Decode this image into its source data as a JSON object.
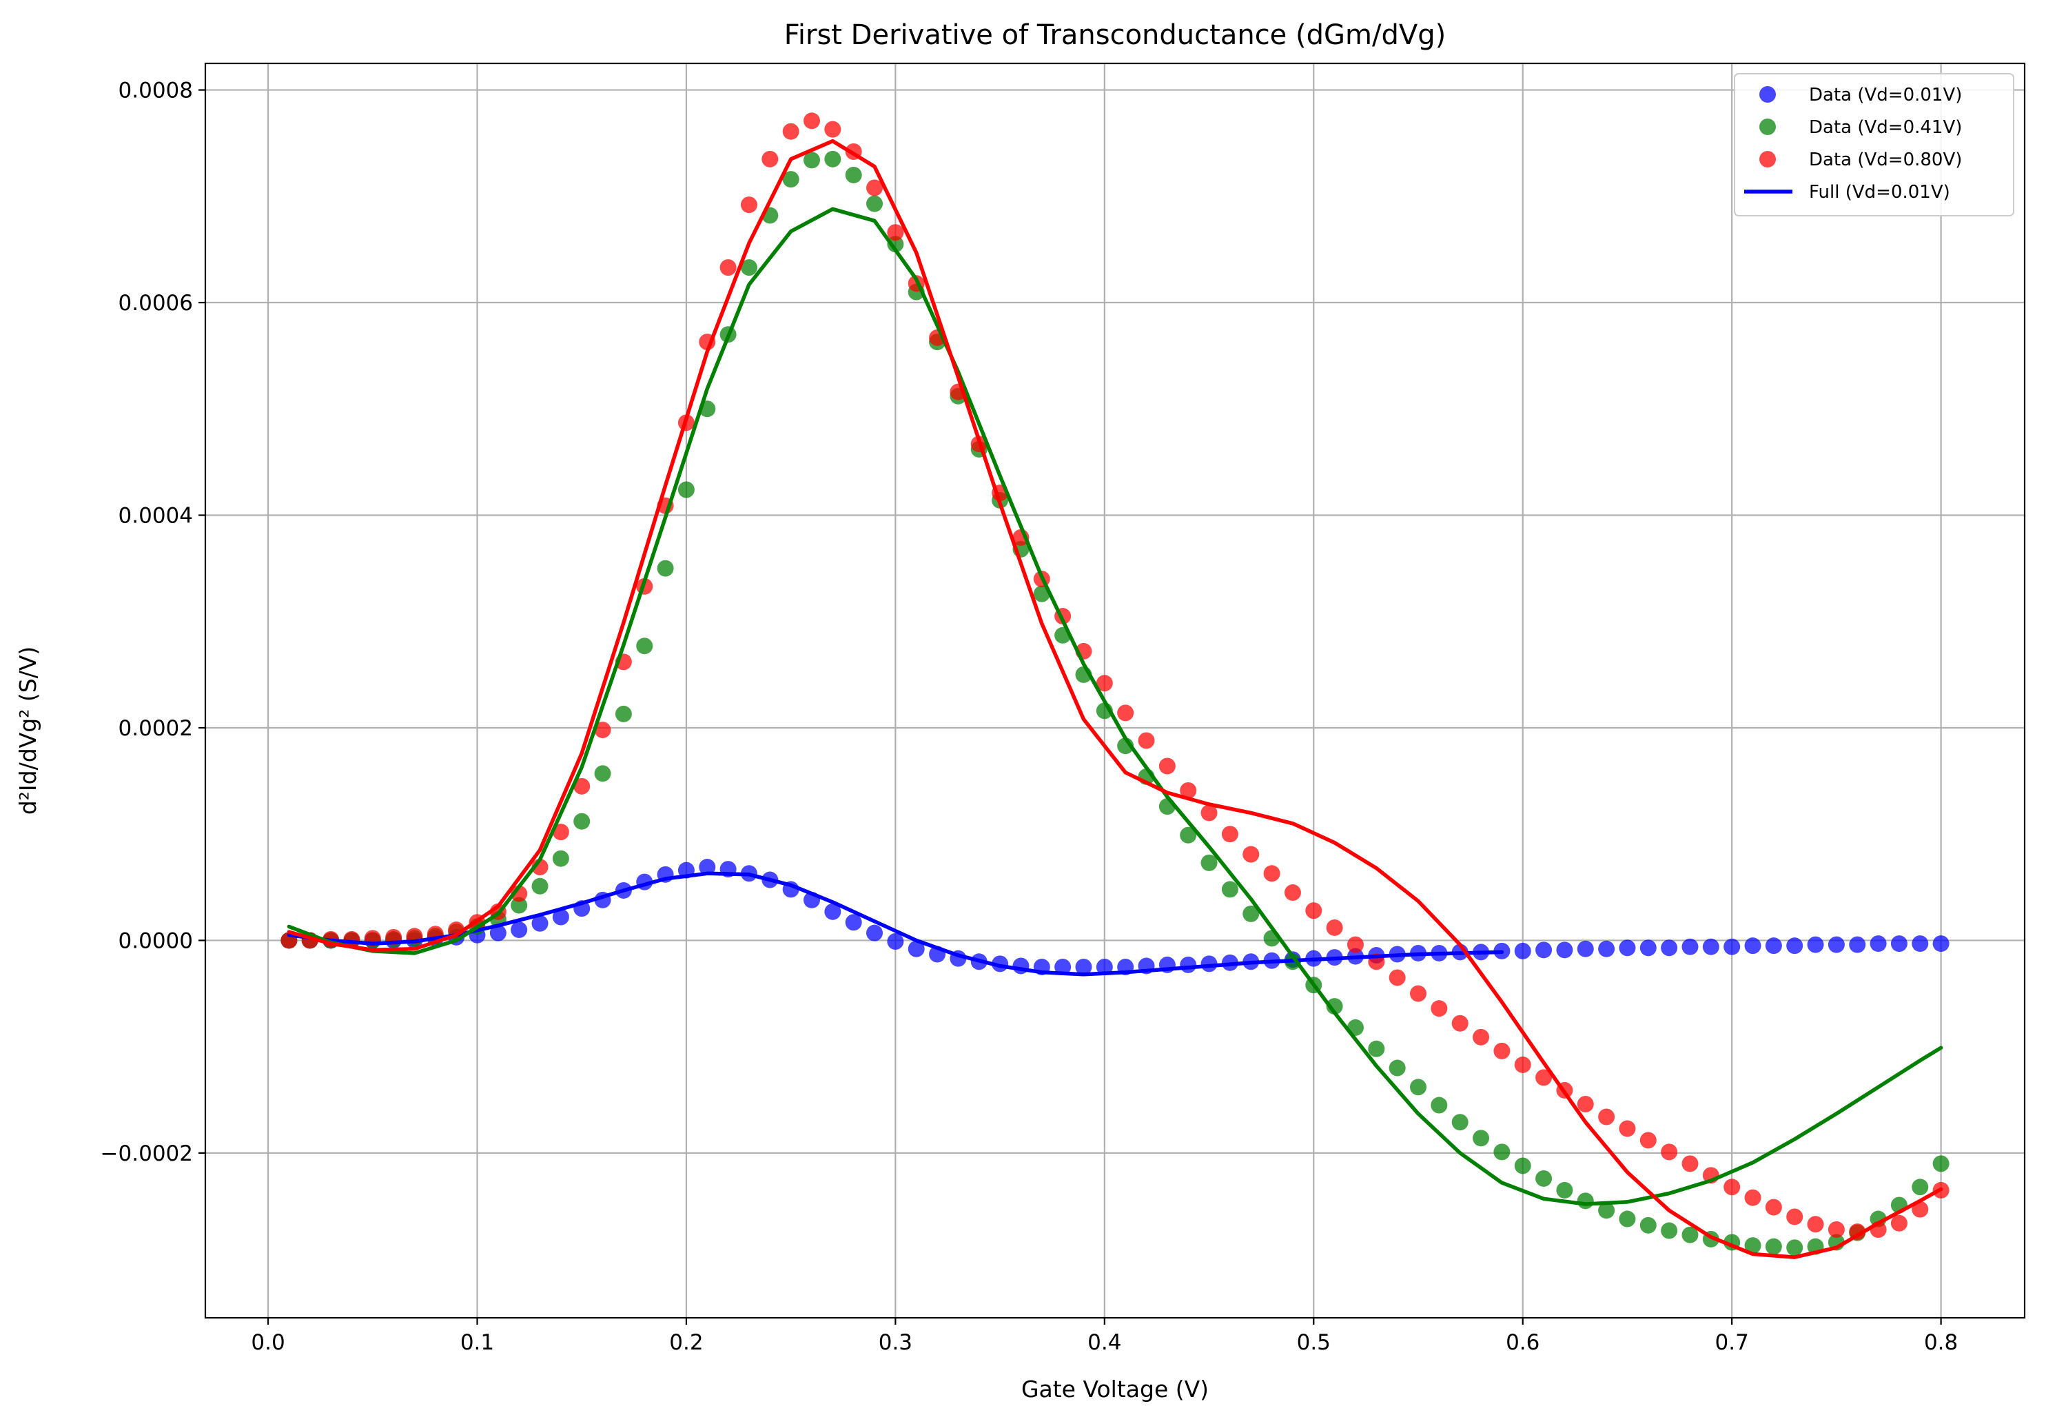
{
  "chart_data": {
    "type": "line",
    "title": "First Derivative of Transconductance (dGm/dVg)",
    "xlabel": "Gate Voltage (V)",
    "ylabel": "d²Id/dVg² (S/V)",
    "xlim": [
      -0.03,
      0.84
    ],
    "ylim": [
      -0.000355,
      0.000825
    ],
    "xticks": [
      0.0,
      0.1,
      0.2,
      0.3,
      0.4,
      0.5,
      0.6,
      0.7,
      0.8
    ],
    "xtick_labels": [
      "0.0",
      "0.1",
      "0.2",
      "0.3",
      "0.4",
      "0.5",
      "0.6",
      "0.7",
      "0.8"
    ],
    "yticks": [
      -0.0002,
      0.0,
      0.0002,
      0.0004,
      0.0006,
      0.0008
    ],
    "ytick_labels": [
      "−0.0002",
      "0.0000",
      "0.0002",
      "0.0004",
      "0.0006",
      "0.0008"
    ],
    "grid": true,
    "legend_position": "top-right",
    "legend": [
      {
        "label": "Data (Vd=0.01V)",
        "kind": "marker",
        "color": "#0000ff"
      },
      {
        "label": "Data (Vd=0.41V)",
        "kind": "marker",
        "color": "#008000"
      },
      {
        "label": "Data (Vd=0.80V)",
        "kind": "marker",
        "color": "#ff0000"
      },
      {
        "label": "Full (Vd=0.01V)",
        "kind": "line",
        "color": "#0000ff"
      }
    ],
    "x": [
      0.01,
      0.02,
      0.03,
      0.04,
      0.05,
      0.06,
      0.07,
      0.08,
      0.09,
      0.1,
      0.11,
      0.12,
      0.13,
      0.14,
      0.15,
      0.16,
      0.17,
      0.18,
      0.19,
      0.2,
      0.21,
      0.22,
      0.23,
      0.24,
      0.25,
      0.26,
      0.27,
      0.28,
      0.29,
      0.3,
      0.31,
      0.32,
      0.33,
      0.34,
      0.35,
      0.36,
      0.37,
      0.38,
      0.39,
      0.4,
      0.41,
      0.42,
      0.43,
      0.44,
      0.45,
      0.46,
      0.47,
      0.48,
      0.49,
      0.5,
      0.51,
      0.52,
      0.53,
      0.54,
      0.55,
      0.56,
      0.57,
      0.58,
      0.59,
      0.6,
      0.61,
      0.62,
      0.63,
      0.64,
      0.65,
      0.66,
      0.67,
      0.68,
      0.69,
      0.7,
      0.71,
      0.72,
      0.73,
      0.74,
      0.75,
      0.76,
      0.77,
      0.78,
      0.79,
      0.8
    ],
    "scatter_series": [
      {
        "name": "Data (Vd=0.01V)",
        "color": "#0000ff",
        "values": [
          0.0,
          0.0,
          0.0,
          0.0,
          0.0,
          0.0,
          0.0,
          2e-06,
          3e-06,
          5e-06,
          7e-06,
          1e-05,
          1.6e-05,
          2.2e-05,
          3e-05,
          3.8e-05,
          4.7e-05,
          5.5e-05,
          6.2e-05,
          6.6e-05,
          6.9e-05,
          6.7e-05,
          6.3e-05,
          5.7e-05,
          4.8e-05,
          3.8e-05,
          2.7e-05,
          1.7e-05,
          7e-06,
          -1e-06,
          -8e-06,
          -1.3e-05,
          -1.7e-05,
          -2e-05,
          -2.2e-05,
          -2.4e-05,
          -2.5e-05,
          -2.5e-05,
          -2.5e-05,
          -2.5e-05,
          -2.5e-05,
          -2.4e-05,
          -2.3e-05,
          -2.3e-05,
          -2.2e-05,
          -2.1e-05,
          -2e-05,
          -1.9e-05,
          -1.8e-05,
          -1.7e-05,
          -1.6e-05,
          -1.5e-05,
          -1.4e-05,
          -1.3e-05,
          -1.2e-05,
          -1.2e-05,
          -1.1e-05,
          -1.1e-05,
          -1e-05,
          -1e-05,
          -9e-06,
          -9e-06,
          -8e-06,
          -8e-06,
          -7e-06,
          -7e-06,
          -7e-06,
          -6e-06,
          -6e-06,
          -6e-06,
          -5e-06,
          -5e-06,
          -5e-06,
          -4e-06,
          -4e-06,
          -4e-06,
          -3e-06,
          -3e-06,
          -3e-06,
          -3e-06
        ]
      },
      {
        "name": "Data (Vd=0.41V)",
        "color": "#008000",
        "values": [
          0.0,
          0.0,
          0.0,
          0.0,
          0.0,
          1e-06,
          2e-06,
          4e-06,
          8e-06,
          1.3e-05,
          2e-05,
          3.3e-05,
          5.1e-05,
          7.7e-05,
          0.000112,
          0.000157,
          0.000213,
          0.000277,
          0.00035,
          0.000424,
          0.0005,
          0.00057,
          0.000633,
          0.000682,
          0.000716,
          0.000734,
          0.000735,
          0.00072,
          0.000693,
          0.000655,
          0.00061,
          0.000563,
          0.000512,
          0.000462,
          0.000414,
          0.000368,
          0.000326,
          0.000287,
          0.00025,
          0.000216,
          0.000183,
          0.000154,
          0.000126,
          9.9e-05,
          7.3e-05,
          4.8e-05,
          2.5e-05,
          2e-06,
          -2e-05,
          -4.2e-05,
          -6.2e-05,
          -8.2e-05,
          -0.000102,
          -0.00012,
          -0.000138,
          -0.000155,
          -0.000171,
          -0.000186,
          -0.000199,
          -0.000212,
          -0.000224,
          -0.000235,
          -0.000245,
          -0.000254,
          -0.000262,
          -0.000268,
          -0.000273,
          -0.000277,
          -0.000281,
          -0.000284,
          -0.000287,
          -0.000288,
          -0.000289,
          -0.000288,
          -0.000284,
          -0.000275,
          -0.000262,
          -0.000249,
          -0.000232,
          -0.00021
        ]
      },
      {
        "name": "Data (Vd=0.80V)",
        "color": "#ff0000",
        "values": [
          0.0,
          0.0,
          1e-06,
          1e-06,
          2e-06,
          3e-06,
          4e-06,
          6e-06,
          1e-05,
          1.7e-05,
          2.7e-05,
          4.4e-05,
          6.9e-05,
          0.000102,
          0.000145,
          0.000198,
          0.000262,
          0.000333,
          0.000409,
          0.000487,
          0.000563,
          0.000633,
          0.000692,
          0.000735,
          0.000761,
          0.000771,
          0.000763,
          0.000742,
          0.000708,
          0.000666,
          0.000618,
          0.000567,
          0.000516,
          0.000467,
          0.000421,
          0.000379,
          0.00034,
          0.000305,
          0.000272,
          0.000242,
          0.000214,
          0.000188,
          0.000164,
          0.000141,
          0.00012,
          0.0001,
          8.1e-05,
          6.3e-05,
          4.5e-05,
          2.8e-05,
          1.2e-05,
          -4e-06,
          -2e-05,
          -3.5e-05,
          -5e-05,
          -6.4e-05,
          -7.8e-05,
          -9.1e-05,
          -0.000104,
          -0.000117,
          -0.000129,
          -0.000141,
          -0.000154,
          -0.000166,
          -0.000177,
          -0.000188,
          -0.000199,
          -0.00021,
          -0.000221,
          -0.000232,
          -0.000242,
          -0.000251,
          -0.00026,
          -0.000267,
          -0.000272,
          -0.000274,
          -0.000272,
          -0.000266,
          -0.000253,
          -0.000235
        ]
      }
    ],
    "line_series": [
      {
        "name": "Full (Vd=0.01V)",
        "color": "#0000ff",
        "x": [
          0.01,
          0.03,
          0.05,
          0.07,
          0.09,
          0.11,
          0.13,
          0.15,
          0.17,
          0.19,
          0.21,
          0.23,
          0.25,
          0.27,
          0.29,
          0.31,
          0.33,
          0.35,
          0.37,
          0.39,
          0.41,
          0.43,
          0.45,
          0.47,
          0.49,
          0.51,
          0.53,
          0.55,
          0.57,
          0.59
        ],
        "values": [
          5e-06,
          0.0,
          -3e-06,
          -1e-06,
          5e-06,
          1.4e-05,
          2.4e-05,
          3.5e-05,
          4.7e-05,
          5.8e-05,
          6.3e-05,
          6.2e-05,
          5.2e-05,
          3.6e-05,
          1.8e-05,
          0.0,
          -1.4e-05,
          -2.4e-05,
          -3e-05,
          -3.2e-05,
          -3e-05,
          -2.7e-05,
          -2.4e-05,
          -2.1e-05,
          -1.9e-05,
          -1.7e-05,
          -1.5e-05,
          -1.3e-05,
          -1.2e-05,
          -1.1e-05
        ]
      },
      {
        "color": "#008000",
        "x": [
          0.01,
          0.03,
          0.05,
          0.07,
          0.09,
          0.11,
          0.13,
          0.15,
          0.17,
          0.19,
          0.21,
          0.23,
          0.25,
          0.27,
          0.29,
          0.31,
          0.33,
          0.35,
          0.37,
          0.39,
          0.41,
          0.43,
          0.45,
          0.47,
          0.49,
          0.51,
          0.53,
          0.55,
          0.57,
          0.59,
          0.61,
          0.63,
          0.65,
          0.67,
          0.69,
          0.71,
          0.73,
          0.75,
          0.77,
          0.79,
          0.8
        ],
        "values": [
          1.3e-05,
          -2e-06,
          -1e-05,
          -1.2e-05,
          0.0,
          2.5e-05,
          7.6e-05,
          0.000163,
          0.000278,
          0.000398,
          0.000519,
          0.000617,
          0.000667,
          0.000688,
          0.000677,
          0.000622,
          0.000535,
          0.000437,
          0.000342,
          0.00026,
          0.00019,
          0.000135,
          8.8e-05,
          3.9e-05,
          -1.5e-05,
          -6.8e-05,
          -0.000118,
          -0.000163,
          -0.0002,
          -0.000228,
          -0.000243,
          -0.000248,
          -0.000246,
          -0.000238,
          -0.000226,
          -0.000209,
          -0.000187,
          -0.000163,
          -0.000138,
          -0.000113,
          -0.000101
        ]
      },
      {
        "color": "#ff0000",
        "x": [
          0.01,
          0.03,
          0.05,
          0.07,
          0.09,
          0.11,
          0.13,
          0.15,
          0.17,
          0.19,
          0.21,
          0.23,
          0.25,
          0.27,
          0.29,
          0.31,
          0.33,
          0.35,
          0.37,
          0.39,
          0.41,
          0.43,
          0.45,
          0.47,
          0.49,
          0.51,
          0.53,
          0.55,
          0.57,
          0.59,
          0.61,
          0.63,
          0.65,
          0.67,
          0.69,
          0.71,
          0.73,
          0.75,
          0.77,
          0.79,
          0.8
        ],
        "values": [
          8e-06,
          -3e-06,
          -9e-06,
          -8e-06,
          5e-06,
          3.2e-05,
          8.5e-05,
          0.000176,
          0.000299,
          0.000428,
          0.000554,
          0.000656,
          0.000735,
          0.000752,
          0.000728,
          0.000647,
          0.00053,
          0.000411,
          0.000298,
          0.000208,
          0.000158,
          0.000139,
          0.000128,
          0.00012,
          0.00011,
          9.2e-05,
          6.8e-05,
          3.7e-05,
          -4e-06,
          -5.8e-05,
          -0.000115,
          -0.000171,
          -0.000218,
          -0.000254,
          -0.000279,
          -0.000295,
          -0.000298,
          -0.000289,
          -0.000266,
          -0.000245,
          -0.000234
        ]
      }
    ]
  }
}
